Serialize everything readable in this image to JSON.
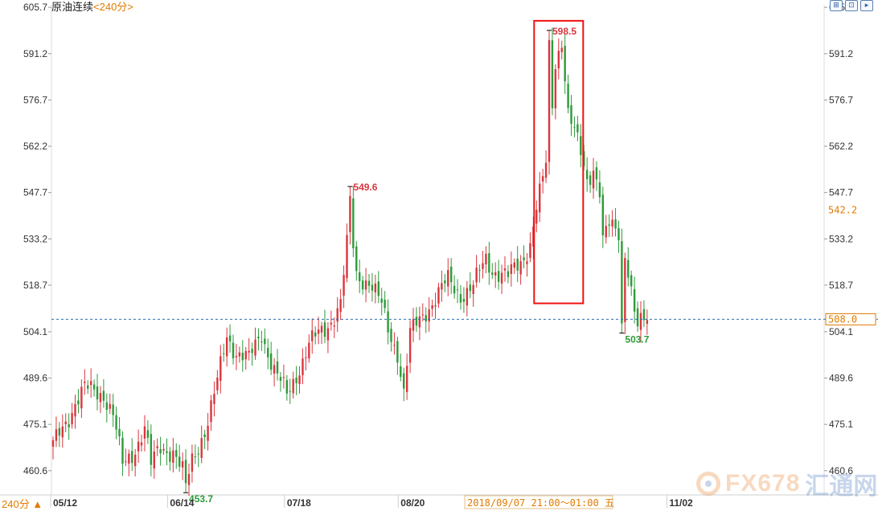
{
  "header": {
    "instrument": "原油连续",
    "period": "<240分>"
  },
  "toolbar": {
    "items": [
      {
        "name": "kline-chart-icon",
        "glyph": "⊞"
      },
      {
        "name": "line-chart-icon",
        "glyph": "⊡"
      },
      {
        "name": "scroll-right-icon",
        "glyph": "▸"
      }
    ]
  },
  "footer": {
    "period_selector": "240分 ▲",
    "cursor_readout": "2018/09/07 21:00～01:00 五"
  },
  "watermark": {
    "brand": "FX678",
    "brand_cn": "汇通网"
  },
  "colors": {
    "up": "#d9363e",
    "down": "#2e9a3a",
    "axis_text": "#333333",
    "last_price": "#e07b00",
    "dashed_line": "#2a6fb5",
    "highlight_box": "#ee1111"
  },
  "chart_data": {
    "type": "candlestick",
    "ylim": [
      453.0,
      606.5
    ],
    "y_ticks": [
      "605.7",
      "591.2",
      "576.7",
      "562.2",
      "547.7",
      "533.2",
      "518.7",
      "504.1",
      "489.6",
      "475.1",
      "460.6"
    ],
    "y_tick_values": [
      605.7,
      591.2,
      576.7,
      562.2,
      547.7,
      533.2,
      518.7,
      504.1,
      489.6,
      475.1,
      460.6
    ],
    "x_labels": [
      {
        "label": "05/12",
        "index": 0
      },
      {
        "label": "06/14",
        "index": 37
      },
      {
        "label": "07/18",
        "index": 74
      },
      {
        "label": "08/20",
        "index": 110
      },
      {
        "label": "11/02",
        "index": 195
      }
    ],
    "last_price_label": "542.2",
    "last_price_value": 542.2,
    "cursor_price_label": "508.0",
    "cursor_price_value": 508.0,
    "annotations": [
      {
        "text": "453.7",
        "value": 453.7,
        "index": 42,
        "kind": "low"
      },
      {
        "text": "549.6",
        "value": 549.6,
        "index": 94,
        "kind": "high"
      },
      {
        "text": "598.5",
        "value": 598.5,
        "index": 157,
        "kind": "high"
      },
      {
        "text": "503.7",
        "value": 503.7,
        "index": 180,
        "kind": "low"
      }
    ],
    "highlight_range": {
      "index_start": 153,
      "index_end": 167,
      "price_low": 513.0,
      "price_high": 601.5
    },
    "segments": [
      [
        0,
        468.0
      ],
      [
        7,
        482.0
      ],
      [
        10,
        486.0
      ],
      [
        16,
        485.0
      ],
      [
        19,
        478.0
      ],
      [
        22,
        462.0
      ],
      [
        25,
        466.0
      ],
      [
        29,
        474.0
      ],
      [
        31,
        462.0
      ],
      [
        34,
        468.0
      ],
      [
        38,
        467.0
      ],
      [
        41,
        460.0
      ],
      [
        42,
        455.0
      ],
      [
        44,
        464.0
      ],
      [
        49,
        476.0
      ],
      [
        52,
        488.0
      ],
      [
        55,
        503.0
      ],
      [
        58,
        498.0
      ],
      [
        62,
        495.0
      ],
      [
        66,
        504.0
      ],
      [
        70,
        492.0
      ],
      [
        74,
        484.0
      ],
      [
        77,
        491.0
      ],
      [
        81,
        500.0
      ],
      [
        86,
        505.0
      ],
      [
        88,
        508.0
      ],
      [
        91,
        513.0
      ],
      [
        94,
        540.0
      ],
      [
        96,
        522.0
      ],
      [
        100,
        520.0
      ],
      [
        104,
        512.0
      ],
      [
        106,
        505.0
      ],
      [
        109,
        498.0
      ],
      [
        111,
        485.0
      ],
      [
        113,
        503.0
      ],
      [
        118,
        511.0
      ],
      [
        122,
        516.0
      ],
      [
        125,
        520.0
      ],
      [
        129,
        516.0
      ],
      [
        133,
        518.0
      ],
      [
        137,
        527.0
      ],
      [
        139,
        524.0
      ],
      [
        144,
        521.0
      ],
      [
        148,
        526.0
      ],
      [
        151,
        532.0
      ],
      [
        153,
        543.0
      ],
      [
        155,
        551.0
      ],
      [
        157,
        562.0
      ],
      [
        159,
        589.0
      ],
      [
        161,
        596.0
      ],
      [
        163,
        572.0
      ],
      [
        165,
        566.0
      ],
      [
        167,
        560.0
      ],
      [
        169,
        552.0
      ],
      [
        171,
        556.0
      ],
      [
        173,
        548.0
      ],
      [
        174,
        532.0
      ],
      [
        176,
        537.0
      ],
      [
        180,
        535.0
      ],
      [
        182,
        524.0
      ],
      [
        184,
        510.0
      ],
      [
        185,
        505.0
      ],
      [
        188,
        508.0
      ]
    ]
  }
}
